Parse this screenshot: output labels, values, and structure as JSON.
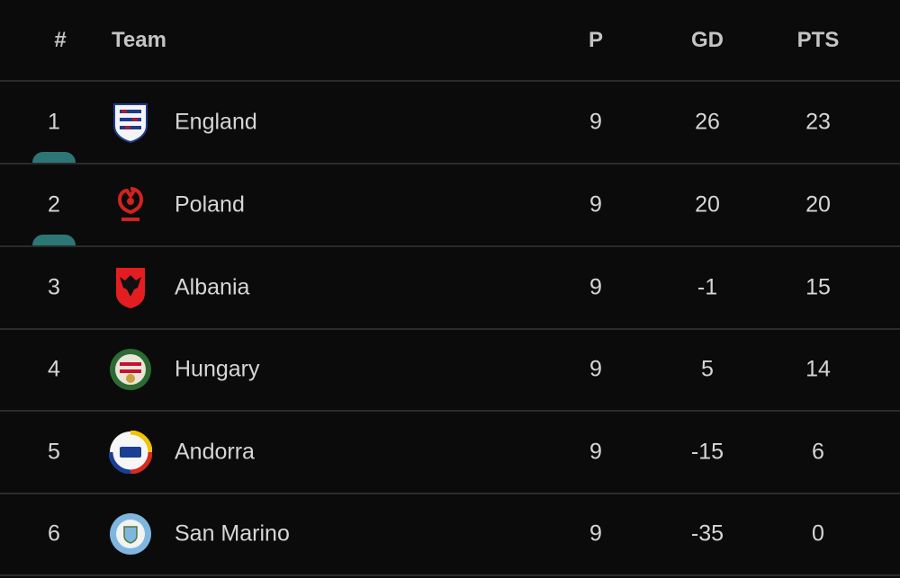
{
  "header": {
    "rank": "#",
    "team": "Team",
    "p": "P",
    "gd": "GD",
    "pts": "PTS"
  },
  "rows": [
    {
      "rank": 1,
      "team": "England",
      "p": 9,
      "gd": 26,
      "pts": 23
    },
    {
      "rank": 2,
      "team": "Poland",
      "p": 9,
      "gd": 20,
      "pts": 20
    },
    {
      "rank": 3,
      "team": "Albania",
      "p": 9,
      "gd": -1,
      "pts": 15
    },
    {
      "rank": 4,
      "team": "Hungary",
      "p": 9,
      "gd": 5,
      "pts": 14
    },
    {
      "rank": 5,
      "team": "Andorra",
      "p": 9,
      "gd": -15,
      "pts": 6
    },
    {
      "rank": 6,
      "team": "San Marino",
      "p": 9,
      "gd": -35,
      "pts": 0
    }
  ]
}
